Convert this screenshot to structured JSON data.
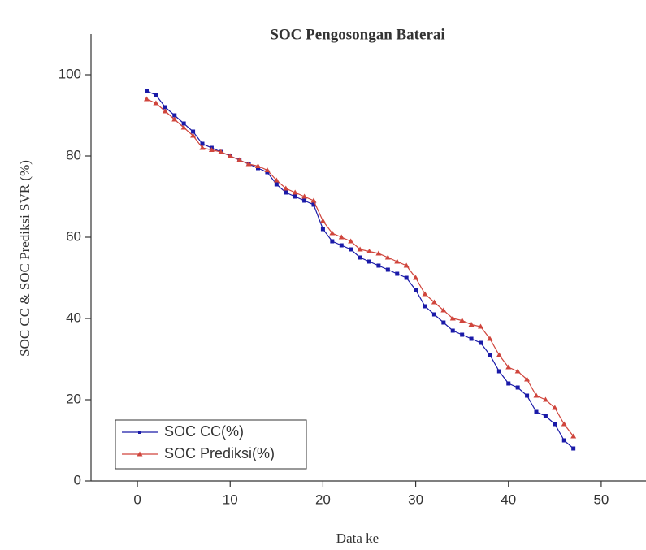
{
  "chart_data": {
    "type": "line",
    "title": "SOC Pengosongan Baterai",
    "xlabel": "Data ke",
    "ylabel": "SOC CC & SOC Prediksi SVR (%)",
    "x": [
      1,
      2,
      3,
      4,
      5,
      6,
      7,
      8,
      9,
      10,
      11,
      12,
      13,
      14,
      15,
      16,
      17,
      18,
      19,
      20,
      21,
      22,
      23,
      24,
      25,
      26,
      27,
      28,
      29,
      30,
      31,
      32,
      33,
      34,
      35,
      36,
      37,
      38,
      39,
      40,
      41,
      42,
      43,
      44,
      45,
      46,
      47
    ],
    "series": [
      {
        "name": "SOC CC(%)",
        "color": "#1a1aa8",
        "marker": "square",
        "values": [
          96,
          95,
          92,
          90,
          88,
          86,
          83,
          82,
          81,
          80,
          79,
          78,
          77,
          76,
          73,
          71,
          70,
          69,
          68,
          62,
          59,
          58,
          57,
          55,
          54,
          53,
          52,
          51,
          50,
          47,
          43,
          41,
          39,
          37,
          36,
          35,
          34,
          31,
          27,
          24,
          23,
          21,
          17,
          16,
          14,
          10,
          8
        ]
      },
      {
        "name": "SOC Prediksi(%)",
        "color": "#d0453c",
        "marker": "triangle",
        "values": [
          94,
          93,
          91,
          89,
          87,
          85,
          82,
          81.5,
          81,
          80,
          79,
          78,
          77.5,
          76.5,
          74,
          72,
          71,
          70,
          69,
          64,
          61,
          60,
          59,
          57,
          56.5,
          56,
          55,
          54,
          53,
          50,
          46,
          44,
          42,
          40,
          39.5,
          38.5,
          38,
          35,
          31,
          28,
          27,
          25,
          21,
          20,
          18,
          14,
          11
        ]
      }
    ],
    "xlim": [
      -5,
      55
    ],
    "xticks": [
      0,
      10,
      20,
      30,
      40,
      50
    ],
    "ylim": [
      0,
      110
    ],
    "yticks": [
      0,
      20,
      40,
      60,
      80,
      100
    ],
    "legend": "lower left",
    "grid": false
  }
}
